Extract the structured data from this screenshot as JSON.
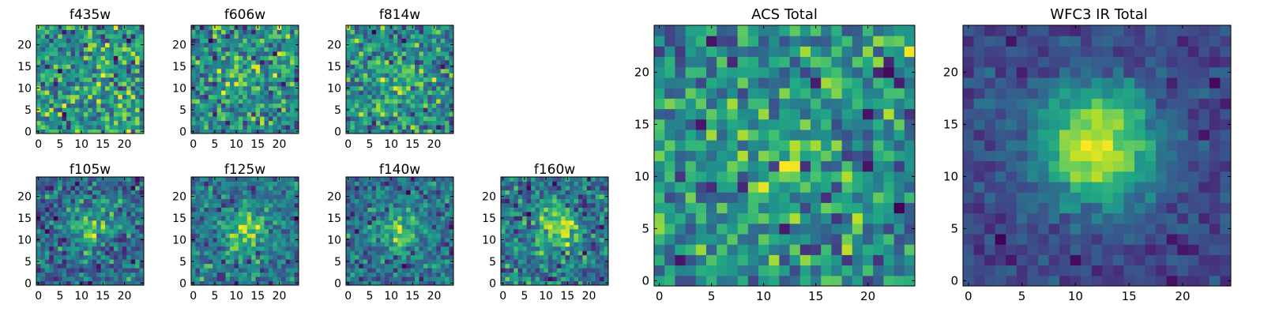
{
  "figure": {
    "colormap": "viridis",
    "colors": {
      "low": "#440154",
      "mid": "#21918c",
      "high": "#fde725",
      "frame": "#000000"
    }
  },
  "chart_data": [
    {
      "type": "heatmap",
      "title": "f435w",
      "size": 25,
      "xticks": [
        0,
        5,
        10,
        15,
        20
      ],
      "yticks": [
        0,
        5,
        10,
        15,
        20
      ],
      "xlim": [
        0,
        24
      ],
      "ylim": [
        0,
        24
      ],
      "xlabel": "",
      "ylabel": "",
      "pattern": "noise",
      "peak": [
        12,
        12
      ]
    },
    {
      "type": "heatmap",
      "title": "f606w",
      "size": 25,
      "xticks": [
        0,
        5,
        10,
        15,
        20
      ],
      "yticks": [
        0,
        5,
        10,
        15,
        20
      ],
      "xlim": [
        0,
        24
      ],
      "ylim": [
        0,
        24
      ],
      "xlabel": "",
      "ylabel": "",
      "pattern": "weak-source",
      "peak": [
        12,
        12
      ]
    },
    {
      "type": "heatmap",
      "title": "f814w",
      "size": 25,
      "xticks": [
        0,
        5,
        10,
        15,
        20
      ],
      "yticks": [
        0,
        5,
        10,
        15,
        20
      ],
      "xlim": [
        0,
        24
      ],
      "ylim": [
        0,
        24
      ],
      "xlabel": "",
      "ylabel": "",
      "pattern": "weak-source",
      "peak": [
        12,
        12
      ]
    },
    {
      "type": "heatmap",
      "title": "f105w",
      "size": 25,
      "xticks": [
        0,
        5,
        10,
        15,
        20
      ],
      "yticks": [
        0,
        5,
        10,
        15,
        20
      ],
      "xlim": [
        0,
        24
      ],
      "ylim": [
        0,
        24
      ],
      "xlabel": "",
      "ylabel": "",
      "pattern": "source",
      "peak": [
        12,
        13
      ]
    },
    {
      "type": "heatmap",
      "title": "f125w",
      "size": 25,
      "xticks": [
        0,
        5,
        10,
        15,
        20
      ],
      "yticks": [
        0,
        5,
        10,
        15,
        20
      ],
      "xlim": [
        0,
        24
      ],
      "ylim": [
        0,
        24
      ],
      "xlabel": "",
      "ylabel": "",
      "pattern": "source",
      "peak": [
        12,
        12
      ]
    },
    {
      "type": "heatmap",
      "title": "f140w",
      "size": 25,
      "xticks": [
        0,
        5,
        10,
        15,
        20
      ],
      "yticks": [
        0,
        5,
        10,
        15,
        20
      ],
      "xlim": [
        0,
        24
      ],
      "ylim": [
        0,
        24
      ],
      "xlabel": "",
      "ylabel": "",
      "pattern": "source",
      "peak": [
        12,
        12
      ]
    },
    {
      "type": "heatmap",
      "title": "f160w",
      "size": 25,
      "xticks": [
        0,
        5,
        10,
        15,
        20
      ],
      "yticks": [
        0,
        5,
        10,
        15,
        20
      ],
      "xlim": [
        0,
        24
      ],
      "ylim": [
        0,
        24
      ],
      "xlabel": "",
      "ylabel": "",
      "pattern": "source",
      "peak": [
        13,
        12
      ]
    },
    {
      "type": "heatmap",
      "title": "ACS Total",
      "size": 25,
      "xticks": [
        0,
        5,
        10,
        15,
        20
      ],
      "yticks": [
        0,
        5,
        10,
        15,
        20
      ],
      "xlim": [
        0,
        24
      ],
      "ylim": [
        0,
        24
      ],
      "xlabel": "",
      "ylabel": "",
      "pattern": "weak-source",
      "peak": [
        12,
        11
      ]
    },
    {
      "type": "heatmap",
      "title": "WFC3 IR Total",
      "size": 25,
      "xticks": [
        0,
        5,
        10,
        15,
        20
      ],
      "yticks": [
        0,
        5,
        10,
        15,
        20
      ],
      "xlim": [
        0,
        24
      ],
      "ylim": [
        0,
        24
      ],
      "xlabel": "",
      "ylabel": "",
      "pattern": "strong-source",
      "peak": [
        12,
        13
      ]
    }
  ]
}
